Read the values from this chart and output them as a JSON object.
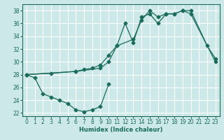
{
  "xlabel": "Humidex (Indice chaleur)",
  "bg_color": "#cce8e8",
  "grid_color": "#ffffff",
  "line_color": "#1a6b5a",
  "xlim": [
    -0.5,
    23.5
  ],
  "ylim": [
    21.5,
    39.0
  ],
  "xticks": [
    0,
    1,
    2,
    3,
    4,
    5,
    6,
    7,
    8,
    9,
    10,
    11,
    12,
    13,
    14,
    15,
    16,
    17,
    18,
    19,
    20,
    21,
    22,
    23
  ],
  "yticks": [
    22,
    24,
    26,
    28,
    30,
    32,
    34,
    36,
    38
  ],
  "line1_x": [
    0,
    1,
    2,
    3,
    4,
    5,
    6,
    7,
    8,
    9,
    10
  ],
  "line1_y": [
    28,
    27.5,
    25,
    24.5,
    24,
    23.5,
    22.5,
    22.2,
    22.5,
    23.0,
    26.5
  ],
  "line2_x": [
    0,
    3,
    6,
    7,
    8,
    9,
    10,
    11,
    12,
    13,
    14,
    15,
    16,
    17,
    18,
    19,
    20,
    22,
    23
  ],
  "line2_y": [
    28,
    28.2,
    28.5,
    28.8,
    29.0,
    29.5,
    31.0,
    32.5,
    36.0,
    33.0,
    37.0,
    37.5,
    36.0,
    37.5,
    37.5,
    38.0,
    38.0,
    32.5,
    30.5
  ],
  "line3_x": [
    0,
    6,
    9,
    10,
    11,
    13,
    14,
    15,
    16,
    17,
    18,
    19,
    20,
    23
  ],
  "line3_y": [
    28,
    28.5,
    29.0,
    30.0,
    32.5,
    33.5,
    36.5,
    38.0,
    37.0,
    37.5,
    37.5,
    38.0,
    37.5,
    30.0
  ],
  "marker_size": 2.5,
  "line_width": 0.9
}
